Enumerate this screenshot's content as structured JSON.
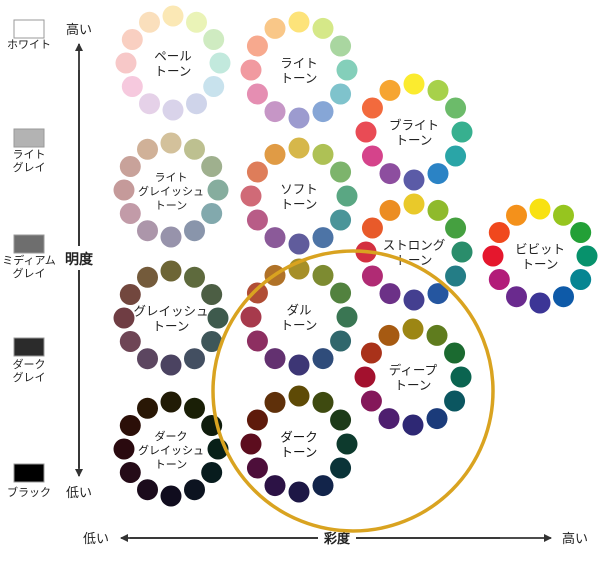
{
  "axes": {
    "vertical": {
      "label": "明度",
      "high": "高い",
      "low": "低い"
    },
    "horizontal": {
      "label": "彩度",
      "high": "高い",
      "low": "低い"
    }
  },
  "gray_scale": [
    {
      "label": [
        "ホワイト"
      ],
      "color": "#ffffff"
    },
    {
      "label": [
        "ライト",
        "グレイ"
      ],
      "color": "#b3b3b3"
    },
    {
      "label": [
        "ミディアム",
        "グレイ"
      ],
      "color": "#6e6e6e"
    },
    {
      "label": [
        "ダーク",
        "グレイ"
      ],
      "color": "#2b2b2b"
    },
    {
      "label": [
        "ブラック"
      ],
      "color": "#000000"
    }
  ],
  "tones": [
    {
      "id": "pale",
      "label": [
        "ペール",
        "トーン"
      ],
      "colors": [
        "#fbe8b5",
        "#eaf3b7",
        "#cfebc1",
        "#c2e9dd",
        "#c8e2ed",
        "#cfd4ea",
        "#d9d3ea",
        "#e5d1e8",
        "#f6c9de",
        "#f7c8c8",
        "#f9cfc1",
        "#fadfbc"
      ]
    },
    {
      "id": "light",
      "label": [
        "ライト",
        "トーン"
      ],
      "colors": [
        "#fde37a",
        "#d5e888",
        "#a9d6a0",
        "#84cfba",
        "#7fc3cc",
        "#86a6d6",
        "#9c9bcf",
        "#c696c6",
        "#e58eb2",
        "#f19aa0",
        "#f7a98e",
        "#f9c788"
      ]
    },
    {
      "id": "bright",
      "label": [
        "ブライト",
        "トーン"
      ],
      "colors": [
        "#fbeb2f",
        "#a7d14b",
        "#6cbb6a",
        "#37b08f",
        "#2aa5a7",
        "#2b83c5",
        "#5b5ba7",
        "#8d4e9f",
        "#d5438b",
        "#e94b55",
        "#f26a3d",
        "#f6a531"
      ]
    },
    {
      "id": "light-grayish",
      "label": [
        "ライト",
        "グレイッシュ",
        "トーン"
      ],
      "colors": [
        "#d3c19b",
        "#bdc090",
        "#9fb08e",
        "#86ad9e",
        "#82a9ad",
        "#8995ab",
        "#9793ab",
        "#ac96aa",
        "#c29ba8",
        "#c59a9a",
        "#c8a29a",
        "#d0b198"
      ]
    },
    {
      "id": "soft",
      "label": [
        "ソフト",
        "トーン"
      ],
      "colors": [
        "#d6b74a",
        "#aec155",
        "#7db46c",
        "#5aa783",
        "#4a9599",
        "#4d74a6",
        "#605c9c",
        "#8b5a99",
        "#b85c87",
        "#d06a77",
        "#de7d5a",
        "#e09b45"
      ]
    },
    {
      "id": "strong",
      "label": [
        "ストロング",
        "トーン"
      ],
      "colors": [
        "#e9c92a",
        "#8fba2c",
        "#45a040",
        "#2a8d6b",
        "#247d86",
        "#2556a0",
        "#443f90",
        "#6c3187",
        "#b02b74",
        "#d33040",
        "#e85a2a",
        "#ec8d22"
      ]
    },
    {
      "id": "vivid",
      "label": [
        "ビビット",
        "トーン"
      ],
      "colors": [
        "#f8e112",
        "#96c51f",
        "#23a037",
        "#07926c",
        "#068592",
        "#0e5aa8",
        "#3c3596",
        "#6a2a8e",
        "#b21c79",
        "#e5172d",
        "#f0481d",
        "#f4911b"
      ]
    },
    {
      "id": "grayish",
      "label": [
        "グレイッシュ",
        "トーン"
      ],
      "colors": [
        "#6d6535",
        "#5e6a3d",
        "#4c5e44",
        "#3e5a4d",
        "#3e5659",
        "#434f61",
        "#4b4361",
        "#5c4660",
        "#6e4555",
        "#6f3d43",
        "#72473e",
        "#745b3b"
      ]
    },
    {
      "id": "dull",
      "label": [
        "ダル",
        "トーン"
      ],
      "colors": [
        "#a68f28",
        "#7d8b31",
        "#52823f",
        "#3a7653",
        "#30676c",
        "#2f4c7a",
        "#3d3675",
        "#633170",
        "#8d2f61",
        "#a73a4c",
        "#b04d35",
        "#b07228"
      ]
    },
    {
      "id": "deep",
      "label": [
        "ディープ",
        "トーン"
      ],
      "colors": [
        "#9c8614",
        "#5f7c1e",
        "#1b6a30",
        "#0b6450",
        "#0b5660",
        "#1b3b7a",
        "#2e2874",
        "#4e1f6f",
        "#84185a",
        "#a3112e",
        "#a9321a",
        "#a65a12"
      ]
    },
    {
      "id": "dark-grayish",
      "label": [
        "ダーク",
        "グレイッシュ",
        "トーン"
      ],
      "colors": [
        "#211b05",
        "#1a1f06",
        "#0f1c0c",
        "#082018",
        "#081c1e",
        "#0c1320",
        "#100c1e",
        "#1b0b1c",
        "#250b18",
        "#2a0a0f",
        "#2b0f08",
        "#291705"
      ]
    },
    {
      "id": "dark",
      "label": [
        "ダーク",
        "トーン"
      ],
      "colors": [
        "#5e4a06",
        "#3e4a10",
        "#1d3b19",
        "#0d3a2d",
        "#0a3338",
        "#12244a",
        "#1d1745",
        "#2c1245",
        "#4d0e3a",
        "#5c0d1e",
        "#5e1a0b",
        "#5f300a"
      ]
    }
  ],
  "highlight": {
    "color": "#d9a320"
  }
}
